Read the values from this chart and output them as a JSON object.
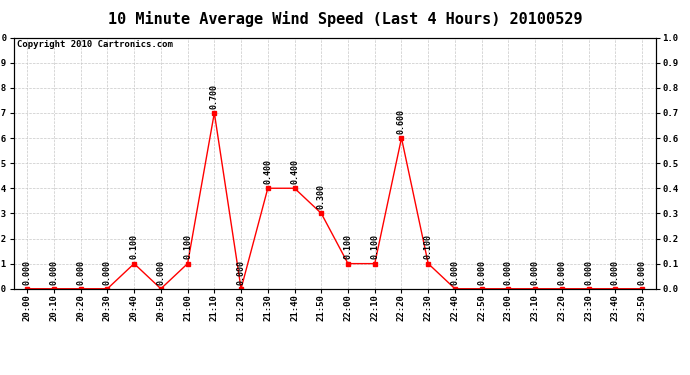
{
  "title": "10 Minute Average Wind Speed (Last 4 Hours) 20100529",
  "copyright": "Copyright 2010 Cartronics.com",
  "x_labels": [
    "20:00",
    "20:10",
    "20:20",
    "20:30",
    "20:40",
    "20:50",
    "21:00",
    "21:10",
    "21:20",
    "21:30",
    "21:40",
    "21:50",
    "22:00",
    "22:10",
    "22:20",
    "22:30",
    "22:40",
    "22:50",
    "23:00",
    "23:10",
    "23:20",
    "23:30",
    "23:40",
    "23:50"
  ],
  "y_values": [
    0.0,
    0.0,
    0.0,
    0.0,
    0.1,
    0.0,
    0.1,
    0.7,
    0.0,
    0.4,
    0.4,
    0.3,
    0.1,
    0.1,
    0.6,
    0.1,
    0.0,
    0.0,
    0.0,
    0.0,
    0.0,
    0.0,
    0.0,
    0.0
  ],
  "ylim": [
    0.0,
    1.0
  ],
  "yticks": [
    0.0,
    0.1,
    0.2,
    0.3,
    0.4,
    0.5,
    0.6,
    0.7,
    0.8,
    0.9,
    1.0
  ],
  "line_color": "#ff0000",
  "marker_color": "#ff0000",
  "bg_color": "#ffffff",
  "grid_color": "#c8c8c8",
  "title_fontsize": 11,
  "copyright_fontsize": 6.5,
  "annotation_fontsize": 6,
  "tick_fontsize": 6.5
}
